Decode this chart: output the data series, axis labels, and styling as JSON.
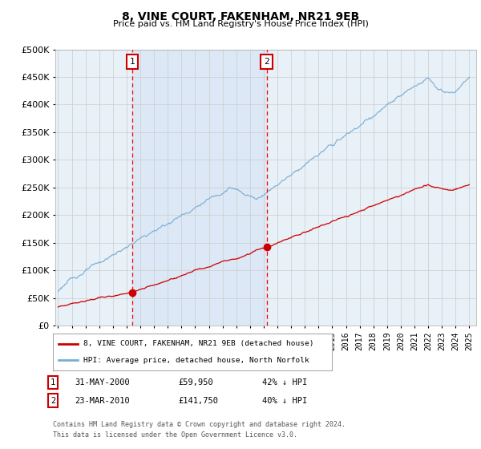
{
  "title": "8, VINE COURT, FAKENHAM, NR21 9EB",
  "subtitle": "Price paid vs. HM Land Registry's House Price Index (HPI)",
  "background_color": "#ffffff",
  "plot_bg_color": "#e8f0f8",
  "grid_color": "#cccccc",
  "hpi_color": "#7aadd4",
  "price_color": "#cc0000",
  "shade_color": "#c8daf0",
  "ylim": [
    0,
    500000
  ],
  "yticks": [
    0,
    50000,
    100000,
    150000,
    200000,
    250000,
    300000,
    350000,
    400000,
    450000,
    500000
  ],
  "ytick_labels": [
    "£0",
    "£50K",
    "£100K",
    "£150K",
    "£200K",
    "£250K",
    "£300K",
    "£350K",
    "£400K",
    "£450K",
    "£500K"
  ],
  "xstart_year": 1995,
  "xend_year": 2025,
  "marker1_year": 2000.41,
  "marker1_price": 59950,
  "marker1_label": "1",
  "marker1_date": "31-MAY-2000",
  "marker1_pct": "42% ↓ HPI",
  "marker2_year": 2010.22,
  "marker2_price": 141750,
  "marker2_label": "2",
  "marker2_date": "23-MAR-2010",
  "marker2_pct": "40% ↓ HPI",
  "legend_label1": "8, VINE COURT, FAKENHAM, NR21 9EB (detached house)",
  "legend_label2": "HPI: Average price, detached house, North Norfolk",
  "footer1": "Contains HM Land Registry data © Crown copyright and database right 2024.",
  "footer2": "This data is licensed under the Open Government Licence v3.0."
}
